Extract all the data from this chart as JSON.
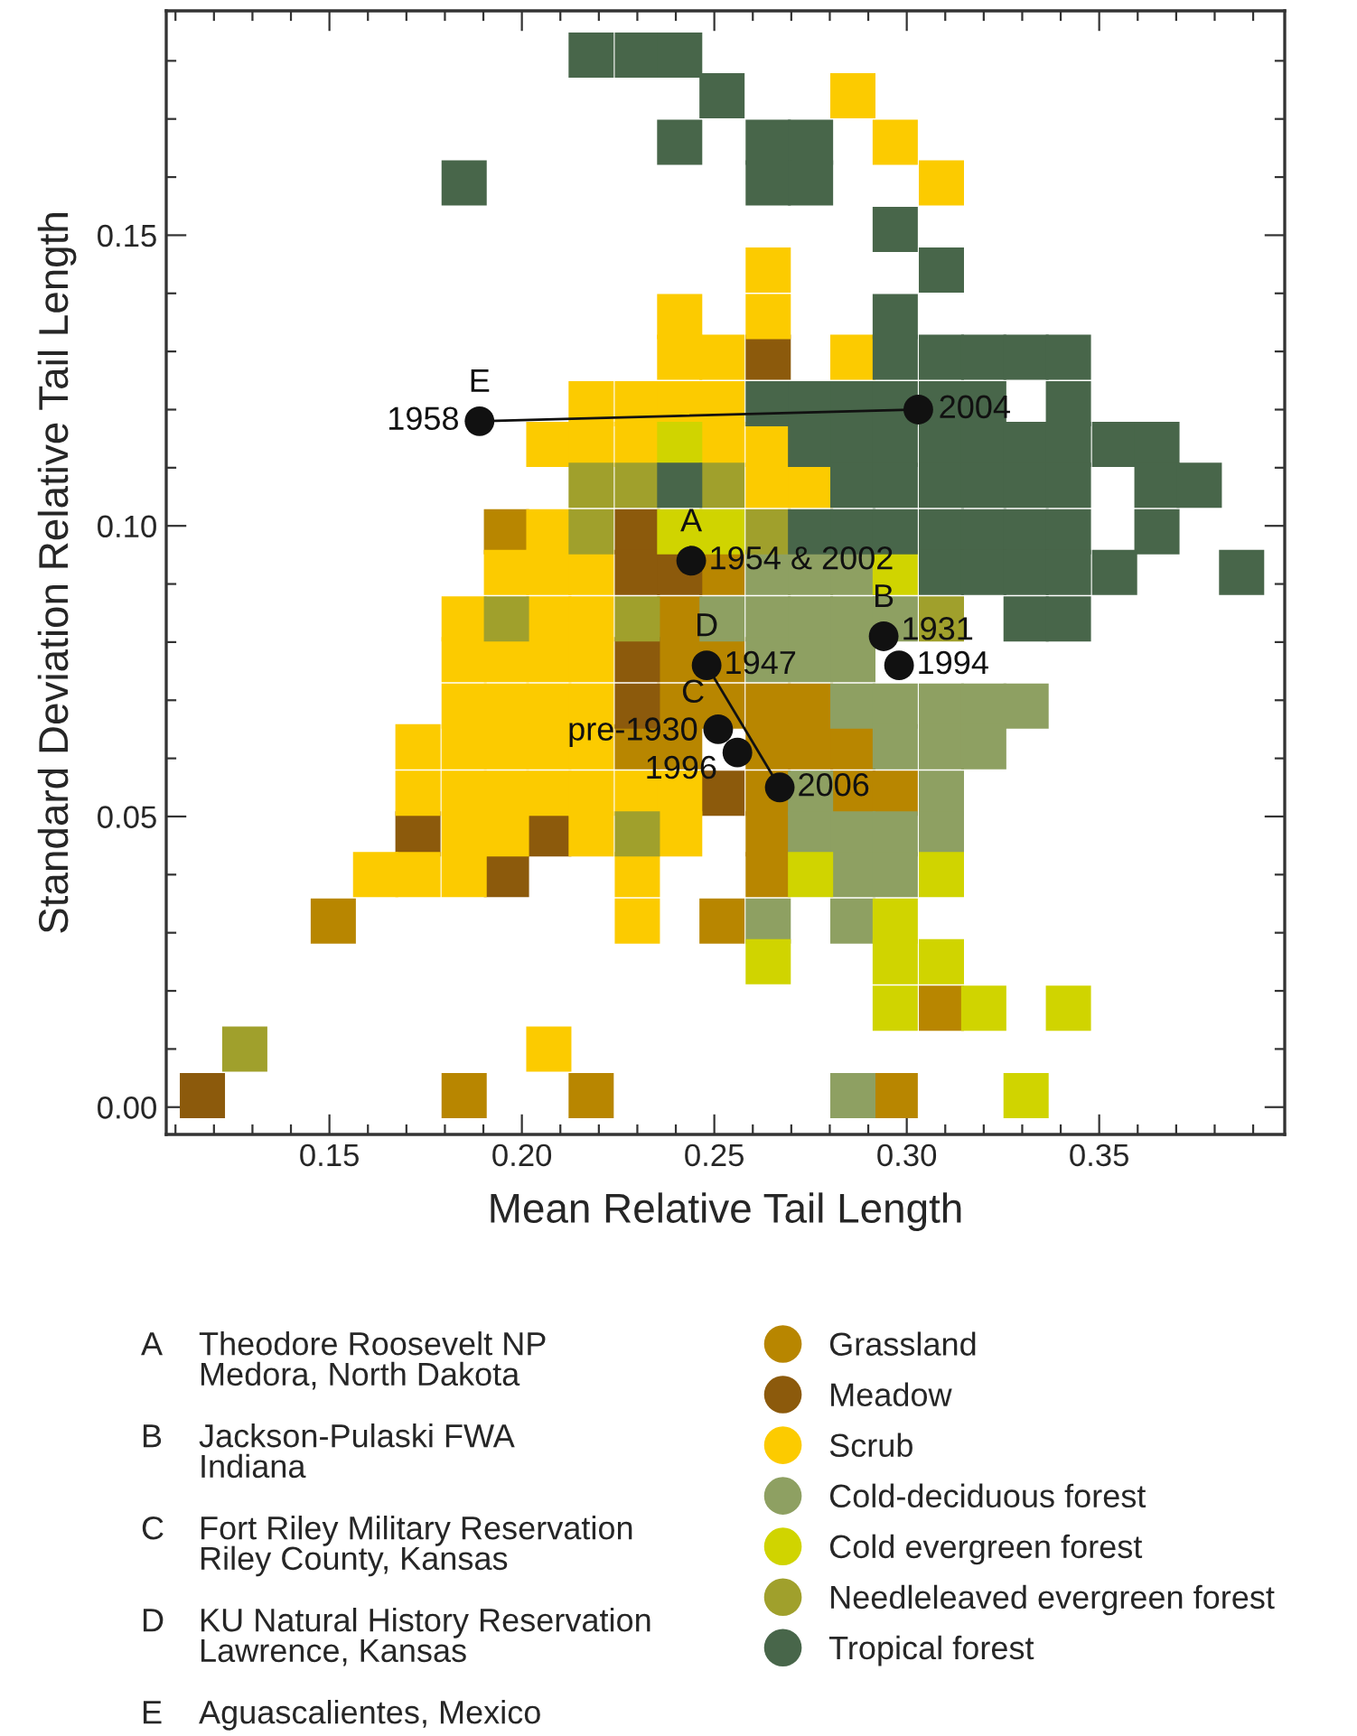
{
  "chart_data": {
    "type": "scatter",
    "xlabel": "Mean Relative Tail Length",
    "ylabel": "Standard Deviation Relative Tail Length",
    "xlim": [
      0.1076,
      0.3982
    ],
    "ylim": [
      -0.0047,
      0.1886
    ],
    "xticks": [
      {
        "value": 0.11,
        "label": null
      },
      {
        "value": 0.12,
        "label": null
      },
      {
        "value": 0.13,
        "label": null
      },
      {
        "value": 0.14,
        "label": null
      },
      0.15,
      {
        "value": 0.16,
        "label": null
      },
      {
        "value": 0.17,
        "label": null
      },
      {
        "value": 0.18,
        "label": null
      },
      {
        "value": 0.19,
        "label": null
      },
      {
        "value": 0.2,
        "label": "0.20"
      },
      {
        "value": 0.21,
        "label": null
      },
      {
        "value": 0.22,
        "label": null
      },
      {
        "value": 0.23,
        "label": null
      },
      {
        "value": 0.24,
        "label": null
      },
      0.25,
      {
        "value": 0.26,
        "label": null
      },
      {
        "value": 0.27,
        "label": null
      },
      {
        "value": 0.28,
        "label": null
      },
      {
        "value": 0.29,
        "label": null
      },
      {
        "value": 0.3,
        "label": "0.30"
      },
      {
        "value": 0.31,
        "label": null
      },
      {
        "value": 0.32,
        "label": null
      },
      {
        "value": 0.33,
        "label": null
      },
      {
        "value": 0.34,
        "label": null
      },
      0.35,
      {
        "value": 0.36,
        "label": null
      },
      {
        "value": 0.37,
        "label": null
      },
      {
        "value": 0.38,
        "label": null
      },
      {
        "value": 0.39,
        "label": null
      }
    ],
    "yticks": [
      {
        "value": 0,
        "label": "0.00"
      },
      {
        "value": 0.01,
        "label": null
      },
      {
        "value": 0.02,
        "label": null
      },
      {
        "value": 0.03,
        "label": null
      },
      {
        "value": 0.04,
        "label": null
      },
      0.05,
      {
        "value": 0.06,
        "label": null
      },
      {
        "value": 0.07,
        "label": null
      },
      {
        "value": 0.08,
        "label": null
      },
      {
        "value": 0.09,
        "label": null
      },
      {
        "value": 0.1,
        "label": "0.10"
      },
      {
        "value": 0.11,
        "label": null
      },
      {
        "value": 0.12,
        "label": null
      },
      {
        "value": 0.13,
        "label": null
      },
      {
        "value": 0.14,
        "label": null
      },
      0.15,
      {
        "value": 0.16,
        "label": null
      },
      {
        "value": 0.17,
        "label": null
      },
      {
        "value": 0.18,
        "label": null
      }
    ],
    "grid": false,
    "legend": "bottom",
    "series": [
      {
        "name": "Grassland",
        "color": "#b88600",
        "marker": "square",
        "x": [
          0.196,
          0.252,
          0.241,
          0.241,
          0.252,
          0.241,
          0.252,
          0.264,
          0.275,
          0.23,
          0.241,
          null,
          0.264,
          0.275,
          0.286,
          0.264,
          0.286,
          0.297,
          0.264,
          0.264,
          0.151,
          0.252,
          0.309,
          0.185,
          0.218,
          0.297
        ],
        "values": [
          0.099,
          0.092,
          0.084,
          0.077,
          0.077,
          0.069,
          0.069,
          0.069,
          0.069,
          0.062,
          0.062,
          null,
          0.062,
          0.062,
          0.062,
          0.054,
          0.054,
          0.054,
          0.047,
          0.04,
          0.032,
          0.032,
          0.017,
          0.002,
          0.002,
          0.002
        ]
      },
      {
        "name": "Meadow",
        "color": "#8c5a0c",
        "marker": "square",
        "x": [
          0.264,
          0.23,
          0.23,
          0.241,
          0.23,
          0.23,
          0.252,
          0.173,
          0.207,
          0.196,
          0.117
        ],
        "values": [
          0.129,
          0.099,
          0.092,
          0.092,
          0.077,
          0.069,
          0.054,
          0.047,
          0.047,
          0.04,
          0.002
        ]
      },
      {
        "name": "Scrub",
        "color": "#fccb00",
        "marker": "square",
        "x": [
          0.286,
          0.297,
          0.309,
          0.264,
          0.241,
          0.264,
          0.241,
          0.252,
          0.286,
          0.218,
          0.23,
          0.241,
          0.252,
          0.207,
          0.218,
          0.23,
          0.252,
          0.264,
          0.264,
          0.275,
          0.207,
          0.196,
          0.207,
          0.218,
          0.185,
          0.207,
          0.218,
          0.185,
          0.196,
          0.207,
          0.218,
          0.185,
          0.196,
          0.207,
          0.218,
          0.173,
          0.185,
          0.196,
          0.207,
          0.218,
          0.173,
          0.185,
          0.196,
          0.207,
          0.218,
          0.23,
          0.241,
          0.185,
          0.196,
          0.218,
          0.241,
          0.162,
          0.173,
          0.185,
          0.23,
          0.23,
          0.207
        ],
        "values": [
          0.174,
          0.166,
          0.159,
          0.144,
          0.136,
          0.136,
          0.129,
          0.129,
          0.129,
          0.121,
          0.121,
          0.121,
          0.121,
          0.114,
          0.114,
          0.114,
          0.114,
          0.114,
          0.107,
          0.107,
          0.099,
          0.092,
          0.092,
          0.092,
          0.084,
          0.084,
          0.084,
          0.077,
          0.077,
          0.077,
          0.077,
          0.069,
          0.069,
          0.069,
          0.069,
          0.062,
          0.062,
          0.062,
          0.062,
          0.062,
          0.054,
          0.054,
          0.054,
          0.054,
          0.054,
          0.054,
          0.054,
          0.047,
          0.047,
          0.047,
          0.047,
          0.04,
          0.04,
          0.04,
          0.04,
          0.032,
          0.01
        ]
      },
      {
        "name": "Cold-deciduous forest",
        "color": "#8ea062",
        "marker": "square",
        "x": [
          0.264,
          0.275,
          0.286,
          0.252,
          0.264,
          0.275,
          0.286,
          0.297,
          0.264,
          0.275,
          0.286,
          null,
          0.286,
          0.297,
          0.309,
          0.32,
          0.331,
          0.297,
          0.309,
          0.32,
          0.275,
          0.309,
          0.275,
          0.286,
          0.297,
          0.309,
          0.286,
          0.297,
          0.264,
          0.286,
          0.286
        ],
        "values": [
          0.092,
          0.092,
          0.092,
          0.084,
          0.084,
          0.084,
          0.084,
          0.084,
          0.077,
          0.077,
          0.077,
          null,
          0.069,
          0.069,
          0.069,
          0.069,
          0.069,
          0.062,
          0.062,
          0.062,
          0.054,
          0.054,
          0.047,
          0.047,
          0.047,
          0.047,
          0.04,
          0.04,
          0.032,
          0.032,
          0.002
        ]
      },
      {
        "name": "Cold evergreen forest",
        "color": "#d0d400",
        "marker": "square",
        "x": [
          0.241,
          0.241,
          0.252,
          0.297,
          0.275,
          0.309,
          0.297,
          0.264,
          0.297,
          0.309,
          0.297,
          0.32,
          0.342,
          0.331
        ],
        "values": [
          0.114,
          0.099,
          0.099,
          0.092,
          0.04,
          0.04,
          0.032,
          0.025,
          0.025,
          0.025,
          0.017,
          0.017,
          0.017,
          0.002
        ]
      },
      {
        "name": "Needleleaved evergreen forest",
        "color": "#a0a02c",
        "marker": "square",
        "x": [
          0.218,
          0.23,
          0.252,
          0.218,
          0.264,
          0.196,
          0.23,
          0.309,
          0.23,
          0.128
        ],
        "values": [
          0.107,
          0.107,
          0.107,
          0.099,
          0.099,
          0.084,
          0.084,
          0.084,
          0.047,
          0.01
        ]
      },
      {
        "name": "Tropical forest",
        "color": "#48664a",
        "marker": "square",
        "x": [
          0.218,
          0.23,
          0.241,
          0.252,
          0.241,
          0.264,
          0.275,
          0.185,
          0.264,
          0.275,
          0.297,
          0.309,
          0.297,
          0.297,
          0.309,
          0.32,
          0.331,
          0.342,
          0.264,
          0.275,
          0.286,
          0.297,
          0.309,
          0.32,
          0.342,
          0.275,
          0.286,
          0.297,
          0.309,
          0.32,
          0.331,
          0.342,
          0.354,
          0.365,
          0.241,
          0.286,
          0.297,
          0.309,
          0.32,
          0.331,
          0.342,
          0.365,
          0.376,
          0.275,
          0.286,
          0.297,
          0.309,
          0.32,
          0.331,
          0.342,
          0.365,
          0.309,
          0.32,
          0.331,
          0.342,
          0.354,
          0.387,
          0.331,
          0.342
        ],
        "values": [
          0.181,
          0.181,
          0.181,
          0.174,
          0.166,
          0.166,
          0.166,
          0.159,
          0.159,
          0.159,
          0.151,
          0.144,
          0.136,
          0.129,
          0.129,
          0.129,
          0.129,
          0.129,
          0.121,
          0.121,
          0.121,
          0.121,
          0.121,
          0.121,
          0.121,
          0.114,
          0.114,
          0.114,
          0.114,
          0.114,
          0.114,
          0.114,
          0.114,
          0.114,
          0.107,
          0.107,
          0.107,
          0.107,
          0.107,
          0.107,
          0.107,
          0.107,
          0.107,
          0.099,
          0.099,
          0.099,
          0.099,
          0.099,
          0.099,
          0.099,
          0.099,
          0.092,
          0.092,
          0.092,
          0.092,
          0.092,
          0.092,
          0.084,
          0.084
        ]
      },
      {
        "type": "line",
        "color": "#111111",
        "line_style": "solid",
        "marker": "none",
        "x": [
          0.189,
          0.303
        ],
        "values": [
          0.118,
          0.12
        ]
      },
      {
        "type": "line",
        "color": "#111111",
        "line_style": "solid",
        "marker": "none",
        "x": [
          0.248,
          0.267
        ],
        "values": [
          0.076,
          0.055
        ]
      },
      {
        "color": "#111111",
        "marker": "circle",
        "x": [
          0.189,
          0.303,
          0.244,
          0.294,
          0.298,
          0.248,
          0.251,
          0.256,
          0.267
        ],
        "values": [
          0.118,
          0.12,
          0.094,
          0.081,
          0.076,
          0.076,
          0.065,
          0.061,
          0.055
        ]
      }
    ],
    "annotations": [
      {
        "text": "E",
        "x": 0.189,
        "y": 0.118
      },
      {
        "text": "1958",
        "x": 0.189,
        "y": 0.118
      },
      {
        "text": "2004",
        "x": 0.303,
        "y": 0.12
      },
      {
        "text": "A",
        "x": 0.244,
        "y": 0.094
      },
      {
        "text": "1954 & 2002",
        "x": 0.244,
        "y": 0.094
      },
      {
        "text": "B",
        "x": 0.294,
        "y": 0.081
      },
      {
        "text": "1931",
        "x": 0.294,
        "y": 0.081
      },
      {
        "text": "1994",
        "x": 0.298,
        "y": 0.076
      },
      {
        "text": "D",
        "x": 0.248,
        "y": 0.076
      },
      {
        "text": "1947",
        "x": 0.248,
        "y": 0.076
      },
      {
        "text": "C",
        "x": 0.251,
        "y": 0.065
      },
      {
        "text": "pre-1930",
        "x": 0.251,
        "y": 0.065
      },
      {
        "text": "1996",
        "x": 0.256,
        "y": 0.061
      },
      {
        "text": "2006",
        "x": 0.267,
        "y": 0.055
      },
      "A",
      "Theodore Roosevelt NP\nMedora, North Dakota",
      "B",
      "Jackson-Pulaski FWA\nIndiana",
      "C",
      "Fort Riley Military Reservation\nRiley County, Kansas",
      "D",
      "KU Natural History Reservation\nLawrence, Kansas",
      "E",
      "Aguascalientes, Mexico"
    ]
  }
}
